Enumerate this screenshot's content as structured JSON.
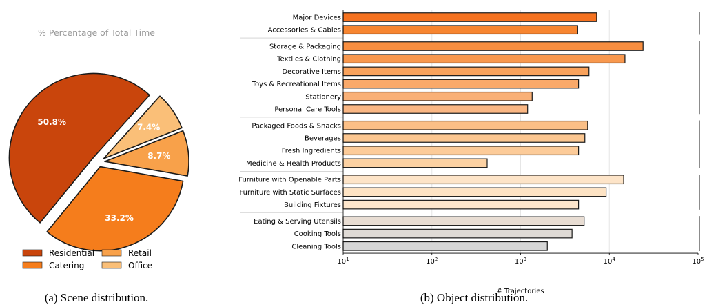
{
  "captions": {
    "a": "(a) Scene distribution.",
    "b": "(b) Object distribution."
  },
  "chart_data": [
    {
      "type": "pie",
      "title": "% Percentage of Total Time",
      "slices": [
        {
          "label": "Residential",
          "value": 50.8,
          "display": "50.8%",
          "color": "#c9450c"
        },
        {
          "label": "Catering",
          "value": 33.2,
          "display": "33.2%",
          "color": "#f57d1c"
        },
        {
          "label": "Retail",
          "value": 8.7,
          "display": "8.7%",
          "color": "#f8a14a"
        },
        {
          "label": "Office",
          "value": 7.4,
          "display": "7.4%",
          "color": "#fabf78"
        }
      ],
      "legend": [
        "Residential",
        "Retail",
        "Catering",
        "Office"
      ],
      "legend_position": "bottom"
    },
    {
      "type": "bar",
      "orientation": "horizontal",
      "xlabel": "# Trajectories",
      "xscale": "log",
      "xlim": [
        10,
        100000
      ],
      "xticks": [
        "10^1",
        "10^2",
        "10^3",
        "10^4",
        "10^5"
      ],
      "grid": "vertical",
      "groups": [
        {
          "name": "",
          "items": [
            {
              "label": "Major Devices",
              "value": 7200,
              "color": "#f57220"
            },
            {
              "label": "Accessories & Cables",
              "value": 4400,
              "color": "#f78530"
            }
          ]
        },
        {
          "name": "",
          "items": [
            {
              "label": "Storage & Packaging",
              "value": 24000,
              "color": "#f88e40"
            },
            {
              "label": "Textiles & Clothing",
              "value": 15000,
              "color": "#f8984e"
            },
            {
              "label": "Decorative Items",
              "value": 5900,
              "color": "#f9a25c"
            },
            {
              "label": "Toys & Recreational Items",
              "value": 4500,
              "color": "#f9a96a"
            },
            {
              "label": "Stationery",
              "value": 1350,
              "color": "#f9b077"
            },
            {
              "label": "Personal Care Tools",
              "value": 1200,
              "color": "#fab784"
            }
          ]
        },
        {
          "name": "",
          "items": [
            {
              "label": "Packaged Foods & Snacks",
              "value": 5700,
              "color": "#fbbf86"
            },
            {
              "label": "Beverages",
              "value": 5300,
              "color": "#fbc690"
            },
            {
              "label": "Fresh Ingredients",
              "value": 4500,
              "color": "#fccb99"
            },
            {
              "label": "Medicine & Health Products",
              "value": 420,
              "color": "#fcd1a2"
            }
          ]
        },
        {
          "name": "",
          "items": [
            {
              "label": "Furniture with Openable Parts",
              "value": 14500,
              "color": "#fde4c8"
            },
            {
              "label": "Furniture with Static Surfaces",
              "value": 9200,
              "color": "#fde3c4"
            },
            {
              "label": "Building Fixtures",
              "value": 4500,
              "color": "#fde6cc"
            }
          ]
        },
        {
          "name": "",
          "items": [
            {
              "label": "Eating & Serving Utensils",
              "value": 5200,
              "color": "#e8ddd3"
            },
            {
              "label": "Cooking Tools",
              "value": 3800,
              "color": "#dfdad5"
            },
            {
              "label": "Cleaning Tools",
              "value": 2000,
              "color": "#d6d6d6"
            }
          ]
        }
      ]
    }
  ]
}
